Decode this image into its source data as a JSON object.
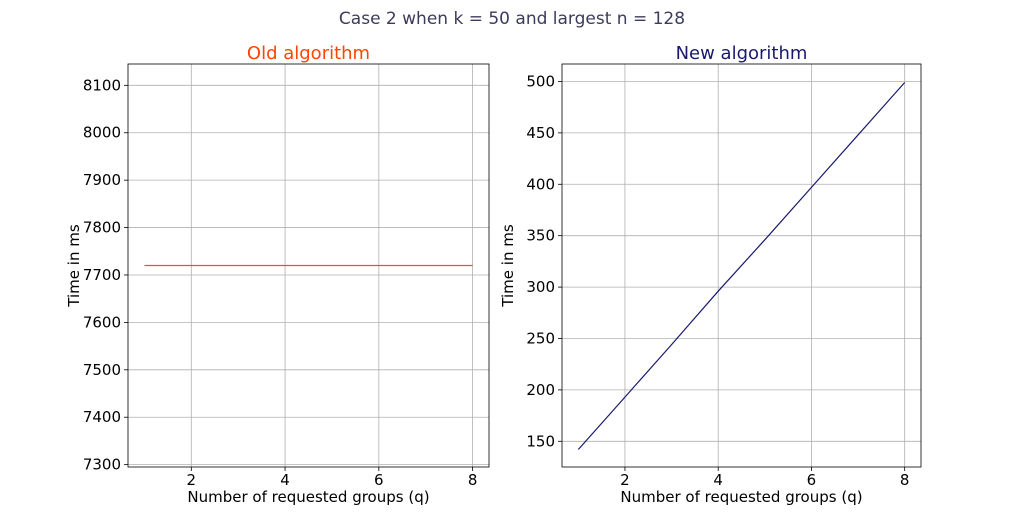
{
  "figure": {
    "suptitle": "Case 2 when k = 50 and largest n = 128",
    "suptitle_color": "#3b3b5c"
  },
  "chart_data": [
    {
      "type": "line",
      "title": "Old algorithm",
      "title_color": "#ff4500",
      "xlabel": "Number of requested groups (q)",
      "ylabel": "Time in ms",
      "xlim": [
        0.65,
        8.35
      ],
      "ylim": [
        7295,
        8145
      ],
      "xticks": [
        2,
        4,
        6,
        8
      ],
      "yticks": [
        7300,
        7400,
        7500,
        7600,
        7700,
        7800,
        7900,
        8000,
        8100
      ],
      "grid": true,
      "series": [
        {
          "color": "#e8590c",
          "x": [
            1,
            2,
            3,
            4,
            5,
            6,
            7,
            8
          ],
          "values": [
            7720,
            7720,
            7720,
            7720,
            7720,
            7720,
            7720,
            7720
          ]
        }
      ]
    },
    {
      "type": "line",
      "title": "New algorithm",
      "title_color": "#191970",
      "xlabel": "Number of requested groups (q)",
      "ylabel": "Time in ms",
      "xlim": [
        0.65,
        8.35
      ],
      "ylim": [
        125,
        517
      ],
      "xticks": [
        2,
        4,
        6,
        8
      ],
      "yticks": [
        150,
        200,
        250,
        300,
        350,
        400,
        450,
        500
      ],
      "grid": true,
      "series": [
        {
          "color": "#191970",
          "x": [
            1,
            2,
            3,
            4,
            5,
            6,
            7,
            8
          ],
          "values": [
            142,
            193,
            244,
            296,
            346,
            397,
            448,
            499
          ]
        }
      ]
    }
  ]
}
